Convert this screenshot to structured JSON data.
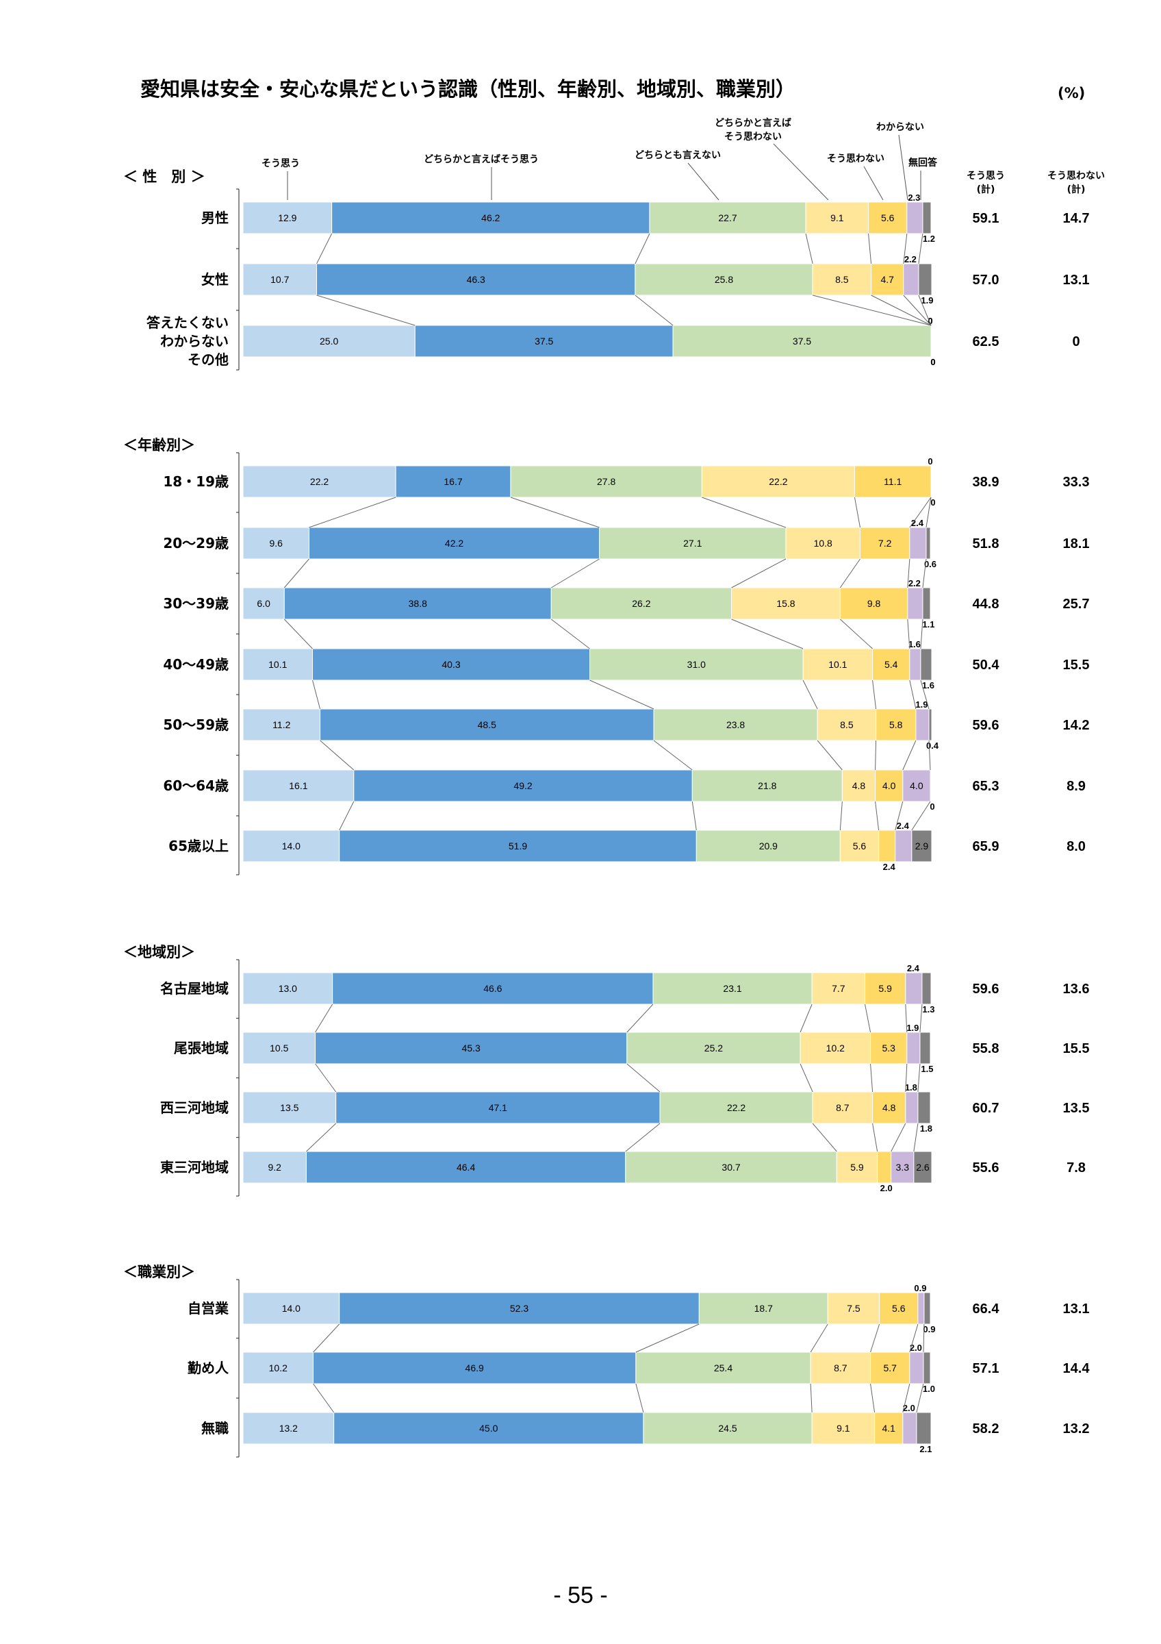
{
  "title": "愛知県は安全・安心な県だという認識（性別、年齢別、地域別、職業別）",
  "unit": "(%)",
  "page_number": "- 55 -",
  "column_headers": {
    "agree_total": [
      "そう思う",
      "(計)"
    ],
    "disagree_total": [
      "そう思わない",
      "(計)"
    ]
  },
  "colors": [
    "#BDD7EE",
    "#5B9BD5",
    "#C6E0B4",
    "#FFE699",
    "#FFD966",
    "#C9B6DB",
    "#808080"
  ],
  "chart_data": {
    "type": "bar",
    "orientation": "horizontal-stacked-100",
    "categories_legend": [
      "そう思う",
      "どちらかと言えばそう思う",
      "どちらとも言えない",
      "どちらかと言えばそう思わない",
      "そう思わない",
      "わからない",
      "無回答"
    ],
    "groups": [
      {
        "name": "＜ 性　別 ＞",
        "rows": [
          {
            "label": [
              "男性"
            ],
            "values": [
              12.9,
              46.2,
              22.7,
              9.1,
              5.6,
              2.3,
              1.2
            ],
            "labels": [
              "12.9",
              "46.2",
              "22.7",
              "9.1",
              "5.6",
              "2.3",
              "1.2"
            ],
            "agree_total": "59.1",
            "disagree_total": "14.7"
          },
          {
            "label": [
              "女性"
            ],
            "values": [
              10.7,
              46.3,
              25.8,
              8.5,
              4.7,
              2.2,
              1.9
            ],
            "labels": [
              "10.7",
              "46.3",
              "25.8",
              "8.5",
              "4.7",
              "2.2",
              "1.9"
            ],
            "agree_total": "57.0",
            "disagree_total": "13.1"
          },
          {
            "label": [
              "答えたくない",
              "わからない",
              "その他"
            ],
            "values": [
              25.0,
              37.5,
              37.5,
              0,
              0,
              0,
              0
            ],
            "labels": [
              "25.0",
              "37.5",
              "37.5",
              "0",
              "0",
              "0",
              "0"
            ],
            "agree_total": "62.5",
            "disagree_total": "0"
          }
        ]
      },
      {
        "name": "＜年齢別＞",
        "rows": [
          {
            "label": [
              "18・19歳"
            ],
            "values": [
              22.2,
              16.7,
              27.8,
              22.2,
              11.1,
              0,
              0
            ],
            "labels": [
              "22.2",
              "16.7",
              "27.8",
              "22.2",
              "11.1",
              "0",
              "0"
            ],
            "agree_total": "38.9",
            "disagree_total": "33.3"
          },
          {
            "label": [
              "20～29歳"
            ],
            "values": [
              9.6,
              42.2,
              27.1,
              10.8,
              7.2,
              2.4,
              0.6
            ],
            "labels": [
              "9.6",
              "42.2",
              "27.1",
              "10.8",
              "7.2",
              "2.4",
              "0.6"
            ],
            "agree_total": "51.8",
            "disagree_total": "18.1"
          },
          {
            "label": [
              "30～39歳"
            ],
            "values": [
              6.0,
              38.8,
              26.2,
              15.8,
              9.8,
              2.2,
              1.1
            ],
            "labels": [
              "6.0",
              "38.8",
              "26.2",
              "15.8",
              "9.8",
              "2.2",
              "1.1"
            ],
            "agree_total": "44.8",
            "disagree_total": "25.7"
          },
          {
            "label": [
              "40～49歳"
            ],
            "values": [
              10.1,
              40.3,
              31.0,
              10.1,
              5.4,
              1.6,
              1.6
            ],
            "labels": [
              "10.1",
              "40.3",
              "31.0",
              "10.1",
              "5.4",
              "1.6",
              "1.6"
            ],
            "agree_total": "50.4",
            "disagree_total": "15.5"
          },
          {
            "label": [
              "50～59歳"
            ],
            "values": [
              11.2,
              48.5,
              23.8,
              8.5,
              5.8,
              1.9,
              0.4
            ],
            "labels": [
              "11.2",
              "48.5",
              "23.8",
              "8.5",
              "5.8",
              "1.9",
              "0.4"
            ],
            "agree_total": "59.6",
            "disagree_total": "14.2"
          },
          {
            "label": [
              "60～64歳"
            ],
            "values": [
              16.1,
              49.2,
              21.8,
              4.8,
              4.0,
              4.0,
              0
            ],
            "labels": [
              "16.1",
              "49.2",
              "21.8",
              "4.8",
              "4.0",
              "4.0",
              "0"
            ],
            "agree_total": "65.3",
            "disagree_total": "8.9"
          },
          {
            "label": [
              "65歳以上"
            ],
            "values": [
              14.0,
              51.9,
              20.9,
              5.6,
              2.4,
              2.4,
              2.9
            ],
            "labels": [
              "14.0",
              "51.9",
              "20.9",
              "5.6",
              "2.4",
              "2.4",
              "2.9"
            ],
            "agree_total": "65.9",
            "disagree_total": "8.0"
          }
        ]
      },
      {
        "name": "＜地域別＞",
        "rows": [
          {
            "label": [
              "名古屋地域"
            ],
            "values": [
              13.0,
              46.6,
              23.1,
              7.7,
              5.9,
              2.4,
              1.3
            ],
            "labels": [
              "13.0",
              "46.6",
              "23.1",
              "7.7",
              "5.9",
              "2.4",
              "1.3"
            ],
            "agree_total": "59.6",
            "disagree_total": "13.6"
          },
          {
            "label": [
              "尾張地域"
            ],
            "values": [
              10.5,
              45.3,
              25.2,
              10.2,
              5.3,
              1.9,
              1.5
            ],
            "labels": [
              "10.5",
              "45.3",
              "25.2",
              "10.2",
              "5.3",
              "1.9",
              "1.5"
            ],
            "agree_total": "55.8",
            "disagree_total": "15.5"
          },
          {
            "label": [
              "西三河地域"
            ],
            "values": [
              13.5,
              47.1,
              22.2,
              8.7,
              4.8,
              1.8,
              1.8
            ],
            "labels": [
              "13.5",
              "47.1",
              "22.2",
              "8.7",
              "4.8",
              "1.8",
              "1.8"
            ],
            "agree_total": "60.7",
            "disagree_total": "13.5"
          },
          {
            "label": [
              "東三河地域"
            ],
            "values": [
              9.2,
              46.4,
              30.7,
              5.9,
              2.0,
              3.3,
              2.6
            ],
            "labels": [
              "9.2",
              "46.4",
              "30.7",
              "5.9",
              "2.0",
              "3.3",
              "2.6"
            ],
            "agree_total": "55.6",
            "disagree_total": "7.8"
          }
        ]
      },
      {
        "name": "＜職業別＞",
        "rows": [
          {
            "label": [
              "自営業"
            ],
            "values": [
              14.0,
              52.3,
              18.7,
              7.5,
              5.6,
              0.9,
              0.9
            ],
            "labels": [
              "14.0",
              "52.3",
              "18.7",
              "7.5",
              "5.6",
              "0.9",
              "0.9"
            ],
            "agree_total": "66.4",
            "disagree_total": "13.1"
          },
          {
            "label": [
              "勤め人"
            ],
            "values": [
              10.2,
              46.9,
              25.4,
              8.7,
              5.7,
              2.0,
              1.0
            ],
            "labels": [
              "10.2",
              "46.9",
              "25.4",
              "8.7",
              "5.7",
              "2.0",
              "1.0"
            ],
            "agree_total": "57.1",
            "disagree_total": "14.4"
          },
          {
            "label": [
              "無職"
            ],
            "values": [
              13.2,
              45.0,
              24.5,
              9.1,
              4.1,
              2.0,
              2.1
            ],
            "labels": [
              "13.2",
              "45.0",
              "24.5",
              "9.1",
              "4.1",
              "2.0",
              "2.1"
            ],
            "agree_total": "58.2",
            "disagree_total": "13.2"
          }
        ]
      }
    ]
  },
  "legend_labels": {
    "agree": "そう思う",
    "somewhat_agree": "どちらかと言えばそう思う",
    "neither": "どちらとも言えない",
    "somewhat_disagree": [
      "どちらかと言えば",
      "そう思わない"
    ],
    "disagree": "そう思わない",
    "dont_know": "わからない",
    "no_answer": "無回答"
  }
}
